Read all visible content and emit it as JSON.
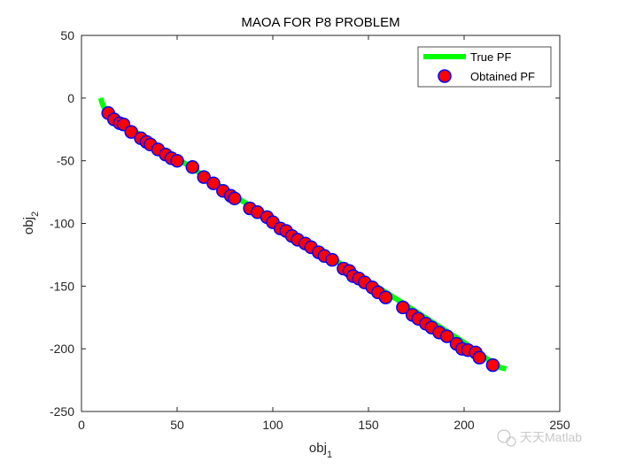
{
  "chart_data": {
    "type": "scatter",
    "title": "MAOA FOR P8 PROBLEM",
    "xlabel": {
      "base": "obj",
      "sub": "1"
    },
    "ylabel": {
      "base": "obj",
      "sub": "2"
    },
    "xlim": [
      0,
      250
    ],
    "ylim": [
      -250,
      50
    ],
    "xticks": [
      0,
      50,
      100,
      150,
      200,
      250
    ],
    "yticks": [
      50,
      0,
      -50,
      -100,
      -150,
      -200,
      -250
    ],
    "legend": {
      "position": "top-right",
      "entries": [
        "True PF",
        "Obtained PF"
      ]
    },
    "series": [
      {
        "name": "True PF",
        "style": "line",
        "color": "#00ff00",
        "x": [
          10,
          11,
          12,
          14,
          20,
          50,
          100,
          150,
          200,
          212,
          216,
          219,
          222
        ],
        "y": [
          0,
          -5,
          -8,
          -12,
          -19,
          -48,
          -98,
          -146,
          -195,
          -208,
          -212,
          -215,
          -216
        ]
      },
      {
        "name": "Obtained PF",
        "style": "marker",
        "color": "#ff0000",
        "edgeColor": "#0000ff",
        "x": [
          14,
          17,
          20,
          22,
          26,
          31,
          34,
          36,
          40,
          44,
          47,
          50,
          58,
          64,
          69,
          74,
          78,
          80,
          88,
          92,
          97,
          100,
          104,
          107,
          110,
          113,
          117,
          120,
          124,
          127,
          131,
          137,
          140,
          142,
          145,
          148,
          152,
          155,
          159,
          168,
          173,
          176,
          180,
          183,
          187,
          191,
          196,
          199,
          202,
          206,
          208,
          215
        ],
        "y": [
          -12,
          -17,
          -20,
          -21,
          -27,
          -32,
          -35,
          -37,
          -41,
          -45,
          -48,
          -50,
          -55,
          -63,
          -68,
          -74,
          -78,
          -80,
          -88,
          -91,
          -95,
          -99,
          -104,
          -106,
          -110,
          -113,
          -116,
          -119,
          -123,
          -126,
          -129,
          -136,
          -138,
          -142,
          -144,
          -147,
          -151,
          -155,
          -159,
          -167,
          -173,
          -176,
          -180,
          -183,
          -187,
          -190,
          -196,
          -200,
          -201,
          -203,
          -207,
          -213
        ]
      }
    ]
  },
  "watermark": "天天Matlab"
}
